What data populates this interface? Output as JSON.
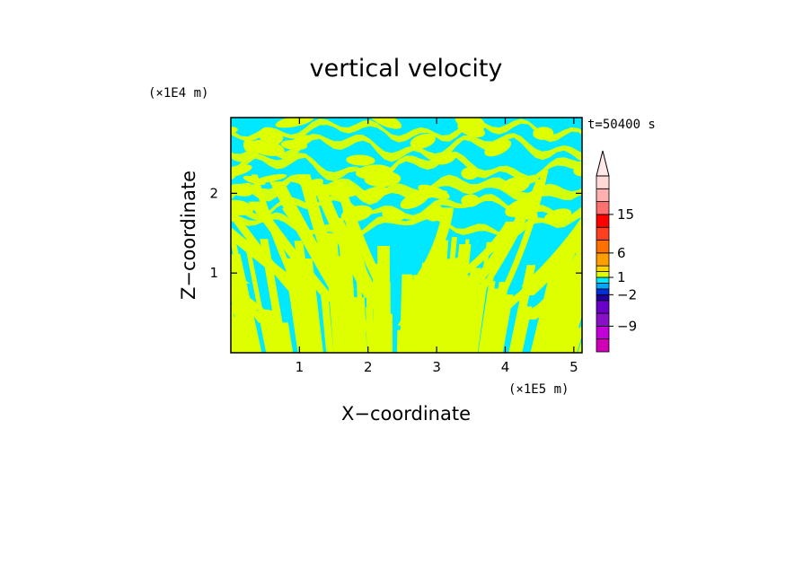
{
  "chart_data": {
    "type": "heatmap",
    "title": "vertical velocity",
    "time_label": "t=50400 s",
    "xlabel": "X−coordinate",
    "ylabel": "Z−coordinate",
    "x_scale_label": "(×1E5 m)",
    "y_scale_label": "(×1E4 m)",
    "xlim": [
      0,
      5.12
    ],
    "ylim": [
      0,
      2.95
    ],
    "x_ticks": [
      "1",
      "2",
      "3",
      "4",
      "5"
    ],
    "x_tick_values": [
      1,
      2,
      3,
      4,
      5
    ],
    "y_ticks": [
      "1",
      "2"
    ],
    "y_tick_values": [
      1,
      2
    ],
    "field_description": "alternating positive (yellow) and negative (cyan) vertical velocity bands, gravity-wave pattern radiating upward from x≈2.3",
    "field_colors": {
      "positive": "#ddff00",
      "negative": "#00e8ff",
      "strong_positive": "#ff0000",
      "strong_negative": "#6a00c8"
    },
    "colorbar": {
      "labels": [
        "15",
        "6",
        "1",
        "−2",
        "−9"
      ],
      "label_values": [
        15,
        6,
        1,
        -2,
        -9
      ],
      "levels": [
        -15,
        -12,
        -9,
        -6,
        -3,
        -2,
        -1,
        0,
        1,
        2,
        3,
        6,
        9,
        12,
        15,
        18,
        21
      ],
      "colors": [
        "#d000b8",
        "#c400d8",
        "#8a10c8",
        "#6a00c8",
        "#1e00a0",
        "#0030d8",
        "#00a8ff",
        "#00e8ff",
        "#ddff00",
        "#ffd400",
        "#ff9e00",
        "#ff7000",
        "#ff4020",
        "#ff0000",
        "#ff7070",
        "#ffb0b0",
        "#ffd8d8"
      ],
      "extend": "max"
    }
  }
}
